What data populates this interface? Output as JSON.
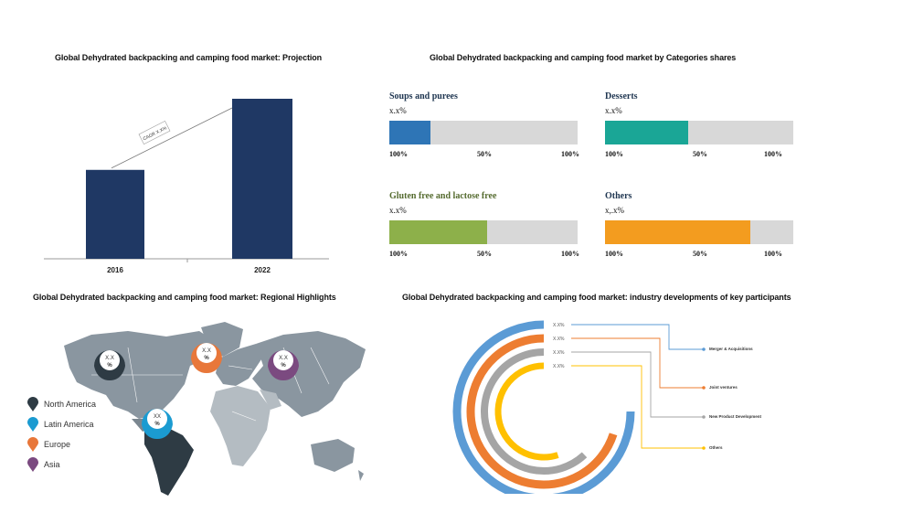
{
  "projection": {
    "title": "Global Dehydrated backpacking and camping food market: Projection",
    "cagr_label": "CAGR X.X%",
    "bar_color": "#1f3864"
  },
  "categories": {
    "title": "Global Dehydrated backpacking and camping food market by Categories shares",
    "items": [
      {
        "name": "Soups and purees",
        "value_label": "x.x%",
        "share": 0.22,
        "color": "#2e75b6",
        "scale": [
          "100%",
          "50%",
          "100%"
        ]
      },
      {
        "name": "Desserts",
        "value_label": "x.x%",
        "share": 0.44,
        "color": "#1aa696",
        "scale": [
          "100%",
          "50%",
          "100%"
        ]
      },
      {
        "name": "Gluten free and lactose free",
        "value_label": "x.x%",
        "share": 0.52,
        "color": "#8db04a",
        "scale": [
          "100%",
          "50%",
          "100%"
        ]
      },
      {
        "name": "Others",
        "value_label": "x,.x%",
        "share": 0.77,
        "color": "#f39c1f",
        "scale": [
          "100%",
          "50%",
          "100%"
        ]
      }
    ]
  },
  "regional": {
    "title": "Global Dehydrated backpacking and camping food market: Regional Highlights",
    "pins": [
      {
        "region": "North America",
        "line1": "X.X",
        "line2": "%",
        "color": "#2e3b44"
      },
      {
        "region": "Latin America",
        "line1": "XX",
        "line2": "%",
        "color": "#1b9bd1"
      },
      {
        "region": "Europe",
        "line1": "X.X",
        "line2": "%",
        "color": "#e8773a"
      },
      {
        "region": "Asia",
        "line1": "X.X",
        "line2": "%",
        "color": "#7b4a80"
      }
    ],
    "legend": [
      "North America",
      "Latin America",
      "Europe",
      "Asia"
    ]
  },
  "developments": {
    "title": "Global Dehydrated backpacking and camping food market: industry developments of key participants",
    "items": [
      {
        "label": "Merger & Acquisitions",
        "value_label": "X.X%",
        "color": "#5b9bd5"
      },
      {
        "label": "Joint ventures",
        "value_label": "X.X%",
        "color": "#ed7d31"
      },
      {
        "label": "New Product Development",
        "value_label": "X.X%",
        "color": "#a5a5a5"
      },
      {
        "label": "Others",
        "value_label": "X.X%",
        "color": "#ffc000"
      }
    ]
  },
  "chart_data": [
    {
      "type": "bar",
      "title": "Global Dehydrated backpacking and camping food market: Projection",
      "categories": [
        "2016",
        "2022"
      ],
      "values": [
        1.0,
        1.8
      ],
      "annotation": "CAGR X.X%"
    },
    {
      "type": "bar",
      "title": "Global Dehydrated backpacking and camping food market by Categories shares",
      "categories": [
        "Soups and purees",
        "Desserts",
        "Gluten free and lactose free",
        "Others"
      ],
      "values": [
        0.22,
        0.44,
        0.52,
        0.77
      ],
      "value_labels": [
        "x.x%",
        "x.x%",
        "x.x%",
        "x,.x%"
      ]
    },
    {
      "type": "pie",
      "title": "Global Dehydrated backpacking and camping food market: industry developments of key participants",
      "categories": [
        "Merger & Acquisitions",
        "Joint ventures",
        "New Product Development",
        "Others"
      ],
      "values": [
        0.75,
        0.7,
        0.62,
        0.55
      ],
      "value_labels": [
        "X.X%",
        "X.X%",
        "X.X%",
        "X.X%"
      ]
    }
  ]
}
